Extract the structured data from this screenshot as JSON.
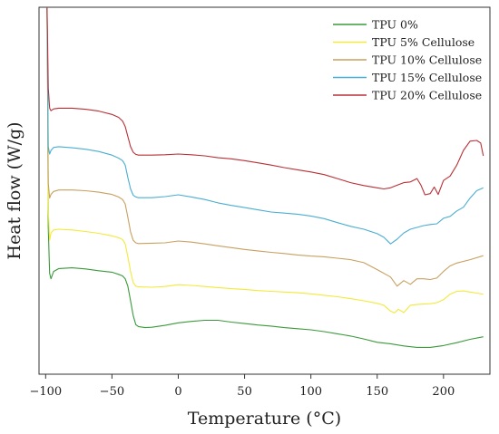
{
  "chart_data": {
    "type": "line",
    "title": "",
    "xlabel": "Temperature (°C)",
    "ylabel": "Heat flow (W/g)",
    "xlim": [
      -105,
      235
    ],
    "ylim": [
      0,
      100
    ],
    "xticks": [
      -100,
      -50,
      0,
      50,
      100,
      150,
      200
    ],
    "xtick_labels": [
      "−100",
      "−50",
      "0",
      "50",
      "100",
      "150",
      "200"
    ],
    "y_tick_labels_shown": false,
    "grid": false,
    "legend_position": "top-right",
    "series": [
      {
        "name": "TPU 0%",
        "color": "#3a9a3a",
        "points": [
          [
            -99,
            101
          ],
          [
            -98.5,
            85
          ],
          [
            -98,
            40
          ],
          [
            -97,
            27.5
          ],
          [
            -96,
            26
          ],
          [
            -94,
            28
          ],
          [
            -90,
            28.8
          ],
          [
            -80,
            29
          ],
          [
            -70,
            28.7
          ],
          [
            -60,
            28.2
          ],
          [
            -50,
            27.8
          ],
          [
            -45,
            27.2
          ],
          [
            -42,
            26.8
          ],
          [
            -40,
            26
          ],
          [
            -38,
            24
          ],
          [
            -36,
            20
          ],
          [
            -34,
            16
          ],
          [
            -32,
            13.5
          ],
          [
            -30,
            13
          ],
          [
            -25,
            12.7
          ],
          [
            -20,
            12.8
          ],
          [
            -10,
            13.3
          ],
          [
            0,
            14
          ],
          [
            10,
            14.4
          ],
          [
            20,
            14.7
          ],
          [
            30,
            14.7
          ],
          [
            40,
            14.2
          ],
          [
            50,
            13.8
          ],
          [
            60,
            13.4
          ],
          [
            70,
            13.1
          ],
          [
            80,
            12.7
          ],
          [
            90,
            12.4
          ],
          [
            100,
            12.1
          ],
          [
            110,
            11.6
          ],
          [
            120,
            11
          ],
          [
            130,
            10.4
          ],
          [
            140,
            9.6
          ],
          [
            150,
            8.7
          ],
          [
            160,
            8.3
          ],
          [
            170,
            7.7
          ],
          [
            180,
            7.3
          ],
          [
            190,
            7.3
          ],
          [
            200,
            7.8
          ],
          [
            210,
            8.6
          ],
          [
            220,
            9.5
          ],
          [
            230,
            10.2
          ]
        ]
      },
      {
        "name": "TPU 5% Cellulose",
        "color": "#f2e93b",
        "points": [
          [
            -99,
            101
          ],
          [
            -98.5,
            80
          ],
          [
            -98,
            45
          ],
          [
            -97,
            36.5
          ],
          [
            -96,
            38.5
          ],
          [
            -94,
            39.3
          ],
          [
            -90,
            39.5
          ],
          [
            -80,
            39.3
          ],
          [
            -70,
            38.9
          ],
          [
            -60,
            38.4
          ],
          [
            -50,
            37.7
          ],
          [
            -45,
            37.2
          ],
          [
            -42,
            36.7
          ],
          [
            -40,
            35.5
          ],
          [
            -38,
            32
          ],
          [
            -36,
            28
          ],
          [
            -34,
            25
          ],
          [
            -32,
            24
          ],
          [
            -30,
            23.8
          ],
          [
            -20,
            23.7
          ],
          [
            -10,
            23.9
          ],
          [
            0,
            24.4
          ],
          [
            10,
            24.2
          ],
          [
            20,
            23.9
          ],
          [
            30,
            23.6
          ],
          [
            40,
            23.3
          ],
          [
            50,
            23.1
          ],
          [
            60,
            22.8
          ],
          [
            70,
            22.6
          ],
          [
            80,
            22.4
          ],
          [
            90,
            22.2
          ],
          [
            100,
            21.9
          ],
          [
            110,
            21.5
          ],
          [
            120,
            21.1
          ],
          [
            130,
            20.6
          ],
          [
            140,
            20
          ],
          [
            150,
            19.3
          ],
          [
            155,
            18.8
          ],
          [
            160,
            17.2
          ],
          [
            163,
            16.7
          ],
          [
            166,
            17.7
          ],
          [
            170,
            16.8
          ],
          [
            175,
            18.8
          ],
          [
            180,
            19
          ],
          [
            185,
            19.1
          ],
          [
            190,
            19.2
          ],
          [
            195,
            19.5
          ],
          [
            200,
            20.3
          ],
          [
            205,
            21.8
          ],
          [
            210,
            22.6
          ],
          [
            215,
            22.7
          ],
          [
            220,
            22.4
          ],
          [
            225,
            22.1
          ],
          [
            230,
            21.8
          ]
        ]
      },
      {
        "name": "TPU 10% Cellulose",
        "color": "#c8a060",
        "points": [
          [
            -99,
            101
          ],
          [
            -98.5,
            75
          ],
          [
            -98,
            52
          ],
          [
            -97,
            48
          ],
          [
            -96,
            49
          ],
          [
            -94,
            49.8
          ],
          [
            -90,
            50.2
          ],
          [
            -80,
            50.2
          ],
          [
            -70,
            50
          ],
          [
            -60,
            49.6
          ],
          [
            -50,
            49
          ],
          [
            -45,
            48.3
          ],
          [
            -42,
            47.6
          ],
          [
            -40,
            46.4
          ],
          [
            -38,
            42.8
          ],
          [
            -36,
            38.8
          ],
          [
            -34,
            36.5
          ],
          [
            -32,
            35.8
          ],
          [
            -30,
            35.6
          ],
          [
            -20,
            35.7
          ],
          [
            -10,
            35.8
          ],
          [
            0,
            36.3
          ],
          [
            10,
            36
          ],
          [
            20,
            35.5
          ],
          [
            30,
            35
          ],
          [
            40,
            34.5
          ],
          [
            50,
            34
          ],
          [
            60,
            33.6
          ],
          [
            70,
            33.2
          ],
          [
            80,
            32.9
          ],
          [
            90,
            32.5
          ],
          [
            100,
            32.2
          ],
          [
            110,
            32
          ],
          [
            120,
            31.6
          ],
          [
            130,
            31.2
          ],
          [
            140,
            30.4
          ],
          [
            150,
            28.5
          ],
          [
            160,
            26.5
          ],
          [
            165,
            24
          ],
          [
            170,
            25.5
          ],
          [
            175,
            24.5
          ],
          [
            180,
            26
          ],
          [
            185,
            26
          ],
          [
            190,
            25.8
          ],
          [
            195,
            26.2
          ],
          [
            200,
            28
          ],
          [
            205,
            29.5
          ],
          [
            210,
            30.3
          ],
          [
            220,
            31.2
          ],
          [
            230,
            32.3
          ]
        ]
      },
      {
        "name": "TPU 15% Cellulose",
        "color": "#4aaed0",
        "points": [
          [
            -99,
            101
          ],
          [
            -98.5,
            80
          ],
          [
            -98,
            62
          ],
          [
            -97,
            60
          ],
          [
            -96,
            61
          ],
          [
            -94,
            61.8
          ],
          [
            -90,
            62
          ],
          [
            -80,
            61.7
          ],
          [
            -70,
            61.3
          ],
          [
            -60,
            60.7
          ],
          [
            -50,
            59.7
          ],
          [
            -45,
            58.9
          ],
          [
            -42,
            58.2
          ],
          [
            -40,
            57
          ],
          [
            -38,
            53.6
          ],
          [
            -36,
            50.5
          ],
          [
            -34,
            48.8
          ],
          [
            -32,
            48.3
          ],
          [
            -30,
            48.1
          ],
          [
            -20,
            48.1
          ],
          [
            -10,
            48.4
          ],
          [
            0,
            48.9
          ],
          [
            10,
            48.3
          ],
          [
            20,
            47.6
          ],
          [
            30,
            46.7
          ],
          [
            40,
            46
          ],
          [
            50,
            45.4
          ],
          [
            60,
            44.8
          ],
          [
            70,
            44.2
          ],
          [
            80,
            43.9
          ],
          [
            90,
            43.6
          ],
          [
            100,
            43.1
          ],
          [
            110,
            42.4
          ],
          [
            120,
            41.3
          ],
          [
            130,
            40.3
          ],
          [
            140,
            39.5
          ],
          [
            150,
            38.3
          ],
          [
            155,
            37.3
          ],
          [
            160,
            35.5
          ],
          [
            165,
            36.8
          ],
          [
            170,
            38.5
          ],
          [
            175,
            39.5
          ],
          [
            180,
            40
          ],
          [
            185,
            40.5
          ],
          [
            190,
            40.8
          ],
          [
            195,
            41
          ],
          [
            200,
            42.5
          ],
          [
            205,
            43
          ],
          [
            210,
            44.5
          ],
          [
            215,
            45.5
          ],
          [
            220,
            48
          ],
          [
            225,
            50
          ],
          [
            230,
            50.8
          ]
        ]
      },
      {
        "name": "TPU 20% Cellulose",
        "color": "#b83036",
        "points": [
          [
            -99,
            101
          ],
          [
            -98.5,
            90
          ],
          [
            -98,
            78
          ],
          [
            -97,
            72.5
          ],
          [
            -96,
            71.8
          ],
          [
            -94,
            72.3
          ],
          [
            -90,
            72.5
          ],
          [
            -80,
            72.5
          ],
          [
            -70,
            72.2
          ],
          [
            -60,
            71.7
          ],
          [
            -50,
            70.8
          ],
          [
            -45,
            70
          ],
          [
            -42,
            69
          ],
          [
            -40,
            67.5
          ],
          [
            -38,
            64.8
          ],
          [
            -36,
            62
          ],
          [
            -34,
            60.5
          ],
          [
            -32,
            59.9
          ],
          [
            -30,
            59.7
          ],
          [
            -20,
            59.7
          ],
          [
            -10,
            59.8
          ],
          [
            0,
            60
          ],
          [
            10,
            59.8
          ],
          [
            20,
            59.5
          ],
          [
            30,
            59
          ],
          [
            40,
            58.7
          ],
          [
            50,
            58.2
          ],
          [
            60,
            57.6
          ],
          [
            70,
            57
          ],
          [
            80,
            56.3
          ],
          [
            90,
            55.7
          ],
          [
            100,
            55.1
          ],
          [
            110,
            54.4
          ],
          [
            120,
            53.3
          ],
          [
            130,
            52.2
          ],
          [
            140,
            51.4
          ],
          [
            150,
            50.8
          ],
          [
            155,
            50.5
          ],
          [
            160,
            50.8
          ],
          [
            165,
            51.5
          ],
          [
            170,
            52.2
          ],
          [
            175,
            52.4
          ],
          [
            180,
            53.3
          ],
          [
            183,
            51.5
          ],
          [
            186,
            48.9
          ],
          [
            190,
            49.2
          ],
          [
            193,
            51
          ],
          [
            196,
            49
          ],
          [
            200,
            52.8
          ],
          [
            205,
            54
          ],
          [
            210,
            57
          ],
          [
            215,
            61
          ],
          [
            220,
            63.5
          ],
          [
            225,
            63.7
          ],
          [
            228,
            63
          ],
          [
            230,
            59.5
          ]
        ]
      }
    ]
  }
}
